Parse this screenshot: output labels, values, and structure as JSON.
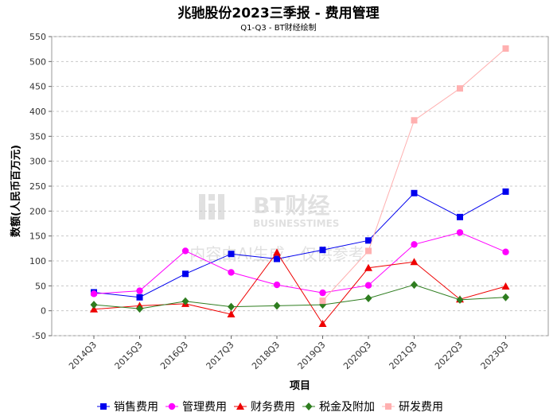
{
  "chart_data": {
    "type": "line",
    "title": "兆驰股份2023三季报 - 费用管理",
    "subtitle": "Q1-Q3 - BT财经绘制",
    "xlabel": "项目",
    "ylabel": "数额(人民币百万元)",
    "categories": [
      "2014Q3",
      "2015Q3",
      "2016Q3",
      "2017Q3",
      "2018Q3",
      "2019Q3",
      "2020Q3",
      "2021Q3",
      "2022Q3",
      "2023Q3"
    ],
    "ylim": [
      -50,
      550
    ],
    "yticks": [
      -50,
      0,
      50,
      100,
      150,
      200,
      250,
      300,
      350,
      400,
      450,
      500,
      550
    ],
    "grid": true,
    "legend_position": "bottom",
    "series": [
      {
        "name": "销售费用",
        "color": "#0000ee",
        "marker": "square",
        "values": [
          37,
          27,
          74,
          114,
          104,
          122,
          141,
          236,
          188,
          239
        ]
      },
      {
        "name": "管理费用",
        "color": "#ff00ff",
        "marker": "circle",
        "values": [
          34,
          40,
          120,
          77,
          52,
          36,
          51,
          133,
          157,
          118
        ]
      },
      {
        "name": "财务费用",
        "color": "#ee0000",
        "marker": "triangle",
        "values": [
          3,
          10,
          14,
          -7,
          117,
          -26,
          86,
          98,
          23,
          49
        ]
      },
      {
        "name": "税金及附加",
        "color": "#2e7d1f",
        "marker": "diamond",
        "values": [
          12,
          4,
          19,
          8,
          10,
          12,
          25,
          52,
          22,
          27
        ]
      },
      {
        "name": "研发费用",
        "color": "#ffb0b0",
        "marker": "square",
        "values": [
          null,
          null,
          null,
          null,
          null,
          20,
          120,
          382,
          446,
          526
        ]
      }
    ]
  },
  "watermark": {
    "brand": "BT财经",
    "brand_en": "BUSINESSTIMES",
    "notice": "内容由AI生成，仅供参考"
  }
}
